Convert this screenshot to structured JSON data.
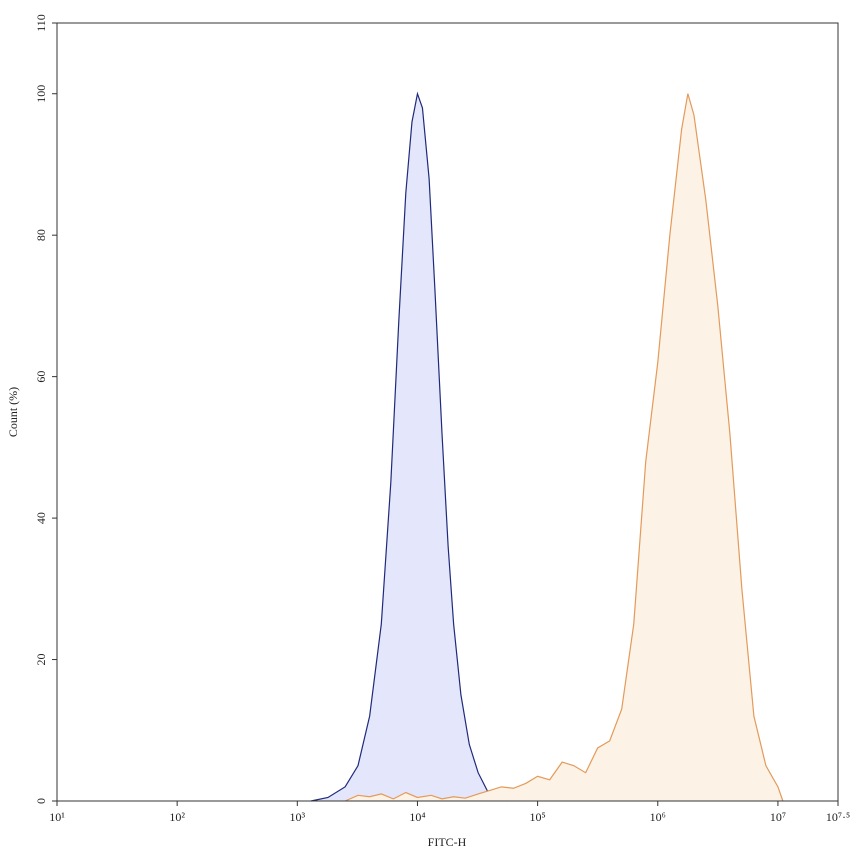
{
  "chart_data": {
    "type": "histogram-overlay",
    "xlabel": "FITC-H",
    "ylabel": "Count (%)",
    "xscale": "log",
    "xlim": [
      10,
      31622776.6
    ],
    "ylim": [
      0,
      110
    ],
    "xticks": [
      {
        "value": 10,
        "label": "10¹"
      },
      {
        "value": 100,
        "label": "10²"
      },
      {
        "value": 1000,
        "label": "10³"
      },
      {
        "value": 10000,
        "label": "10⁴"
      },
      {
        "value": 100000,
        "label": "10⁵"
      },
      {
        "value": 1000000,
        "label": "10⁶"
      },
      {
        "value": 10000000,
        "label": "10⁷"
      },
      {
        "value": 31622776.6,
        "label": "10⁷·⁵"
      }
    ],
    "yticks": [
      0,
      20,
      40,
      60,
      80,
      100,
      110
    ],
    "series": [
      {
        "color": "#1f2a7a",
        "fill": "#e4e6fb",
        "x": [
          1300,
          1800,
          2500,
          3200,
          4000,
          5000,
          6000,
          7000,
          8000,
          9000,
          10000,
          11000,
          12500,
          14000,
          16000,
          18000,
          20000,
          23000,
          27000,
          32000,
          38000,
          45000,
          55000
        ],
        "values": [
          0,
          0.5,
          2,
          5,
          12,
          25,
          45,
          68,
          86,
          96,
          100,
          98,
          88,
          72,
          52,
          36,
          25,
          15,
          8,
          4,
          1.5,
          0.3,
          0
        ]
      },
      {
        "color": "#e39a5a",
        "fill": "#fdf2e6",
        "x": [
          2500,
          3200,
          4000,
          5000,
          6300,
          8000,
          10000,
          13000,
          16000,
          20000,
          25000,
          32000,
          40000,
          50000,
          63000,
          80000,
          100000,
          126000,
          160000,
          200000,
          251000,
          316000,
          398000,
          501000,
          631000,
          794000,
          1000000,
          1260000,
          1580000,
          1780000,
          2000000,
          2510000,
          3160000,
          3980000,
          5010000,
          6310000,
          7940000,
          10000000,
          11000000
        ],
        "values": [
          0,
          0.8,
          0.6,
          1,
          0.3,
          1.2,
          0.5,
          0.8,
          0.3,
          0.6,
          0.4,
          1,
          1.5,
          2,
          1.8,
          2.5,
          3.5,
          3,
          5.5,
          5,
          4,
          7.5,
          8.5,
          13,
          25,
          48,
          62,
          80,
          95,
          100,
          97,
          85,
          70,
          52,
          30,
          12,
          5,
          2,
          0
        ]
      }
    ]
  }
}
